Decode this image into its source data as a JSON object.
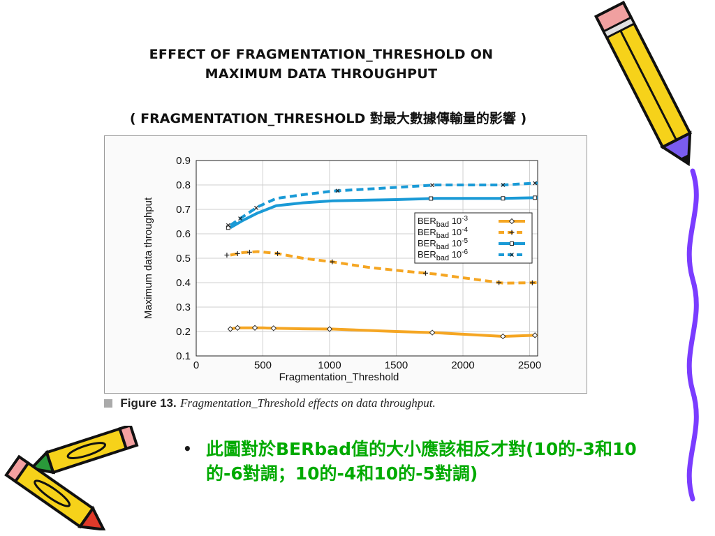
{
  "slide": {
    "title_line1": "EFFECT OF FRAGMENTATION_THRESHOLD ON",
    "title_line2": "MAXIMUM DATA THROUGHPUT",
    "subtitle": "( FRAGMENTATION_THRESHOLD 對最大數據傳輸量的影響 )",
    "caption_label": "Figure 13.",
    "caption_text": "Fragmentation_Threshold effects on data throughput.",
    "bullet": "•",
    "bullet_text": "此圖對於BERbad值的大小應該相反才對(10的-3和10的-6對調；10的-4和10的-5對調)"
  },
  "colors": {
    "orange": "#f5a623",
    "blue": "#1a9ad6",
    "bullet_green": "#00aa00"
  },
  "chart_data": {
    "type": "line",
    "xlabel": "Fragmentation_Threshold",
    "ylabel": "Maximum data throughput",
    "xlim": [
      0,
      2560
    ],
    "ylim": [
      0.1,
      0.9
    ],
    "xticks": [
      0,
      500,
      1000,
      1500,
      2000,
      2500
    ],
    "yticks": [
      0.1,
      0.2,
      0.3,
      0.4,
      0.5,
      0.6,
      0.7,
      0.8,
      0.9
    ],
    "grid": true,
    "legend_position": "right",
    "series": [
      {
        "name": "BERbad 10-3",
        "base": "BER",
        "sub": "bad",
        "exp": "10",
        "sup": "-3",
        "color": "#f5a623",
        "dash": "solid",
        "marker": "diamond",
        "x": [
          256,
          300,
          400,
          500,
          600,
          800,
          1024,
          1500,
          1800,
          2304,
          2560
        ],
        "y": [
          0.21,
          0.215,
          0.215,
          0.215,
          0.213,
          0.211,
          0.21,
          0.2,
          0.195,
          0.18,
          0.185
        ],
        "markers_x": [
          256,
          310,
          440,
          580,
          1000,
          1770,
          2300,
          2540
        ]
      },
      {
        "name": "BERbad 10-4",
        "base": "BER",
        "sub": "bad",
        "exp": "10",
        "sup": "-4",
        "color": "#f5a623",
        "dash": "dashed",
        "marker": "plus",
        "x": [
          256,
          350,
          460,
          600,
          800,
          1024,
          1300,
          1600,
          1800,
          2000,
          2304,
          2560
        ],
        "y": [
          0.513,
          0.523,
          0.527,
          0.52,
          0.5,
          0.485,
          0.462,
          0.445,
          0.435,
          0.42,
          0.398,
          0.4
        ],
        "markers_x": [
          230,
          310,
          400,
          610,
          1020,
          1720,
          2270,
          2520
        ]
      },
      {
        "name": "BERbad 10-5",
        "base": "BER",
        "sub": "bad",
        "exp": "10",
        "sup": "-5",
        "color": "#1a9ad6",
        "dash": "solid",
        "marker": "square",
        "x": [
          256,
          350,
          460,
          600,
          800,
          1024,
          1500,
          1800,
          2304,
          2560
        ],
        "y": [
          0.625,
          0.655,
          0.685,
          0.715,
          0.727,
          0.735,
          0.74,
          0.745,
          0.745,
          0.748
        ],
        "markers_x": [
          240,
          1760,
          2300,
          2540
        ]
      },
      {
        "name": "BERbad 10-6",
        "base": "BER",
        "sub": "bad",
        "exp": "10",
        "sup": "-6",
        "color": "#1a9ad6",
        "dash": "dashed",
        "marker": "x",
        "x": [
          256,
          350,
          460,
          600,
          800,
          1024,
          1500,
          1800,
          2304,
          2560
        ],
        "y": [
          0.635,
          0.67,
          0.71,
          0.745,
          0.76,
          0.775,
          0.79,
          0.8,
          0.8,
          0.808
        ],
        "markers_x": [
          240,
          330,
          450,
          1060,
          1770,
          2300,
          2540
        ]
      }
    ]
  }
}
